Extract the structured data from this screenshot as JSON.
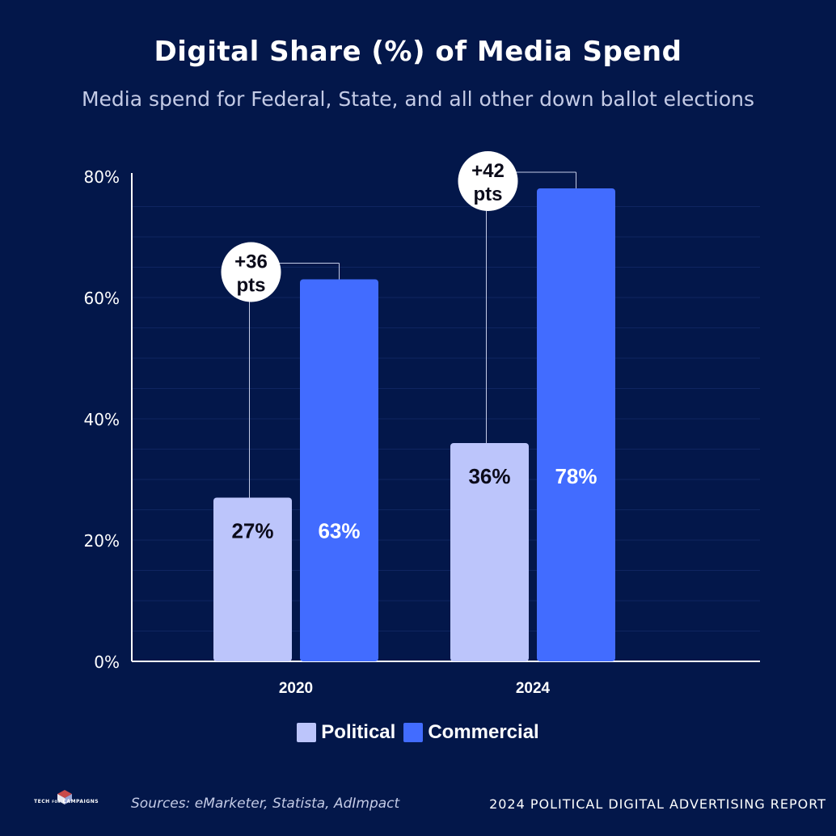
{
  "title": "Digital Share (%) of Media Spend",
  "subtitle": "Media spend for Federal, State, and all other down ballot elections",
  "chart_data": {
    "type": "bar",
    "categories": [
      "2020",
      "2024"
    ],
    "series": [
      {
        "name": "Political",
        "values": [
          27,
          36
        ],
        "labels": [
          "27%",
          "36%"
        ],
        "color": "#bcc5fb"
      },
      {
        "name": "Commercial",
        "values": [
          63,
          78
        ],
        "labels": [
          "63%",
          "78%"
        ],
        "color": "#426cff"
      }
    ],
    "y_ticks": [
      "0%",
      "20%",
      "40%",
      "60%",
      "80%"
    ],
    "ylim": [
      0,
      80
    ],
    "annotations": [
      {
        "line1": "+36",
        "line2": "pts"
      },
      {
        "line1": "+42",
        "line2": "pts"
      }
    ],
    "legend_position": "bottom",
    "grid": true
  },
  "legend": [
    {
      "label": "Political",
      "color": "#bcc5fb"
    },
    {
      "label": "Commercial",
      "color": "#426cff"
    }
  ],
  "footer": {
    "logo_text_left": "TECH",
    "logo_text_mid": "FOR",
    "logo_text_right": "CAMPAIGNS",
    "sources": "Sources: eMarketer, Statista, AdImpact",
    "report": "2024 POLITICAL DIGITAL ADVERTISING REPORT"
  },
  "colors": {
    "background": "#03174a",
    "political": "#bcc5fb",
    "commercial": "#426cff"
  }
}
